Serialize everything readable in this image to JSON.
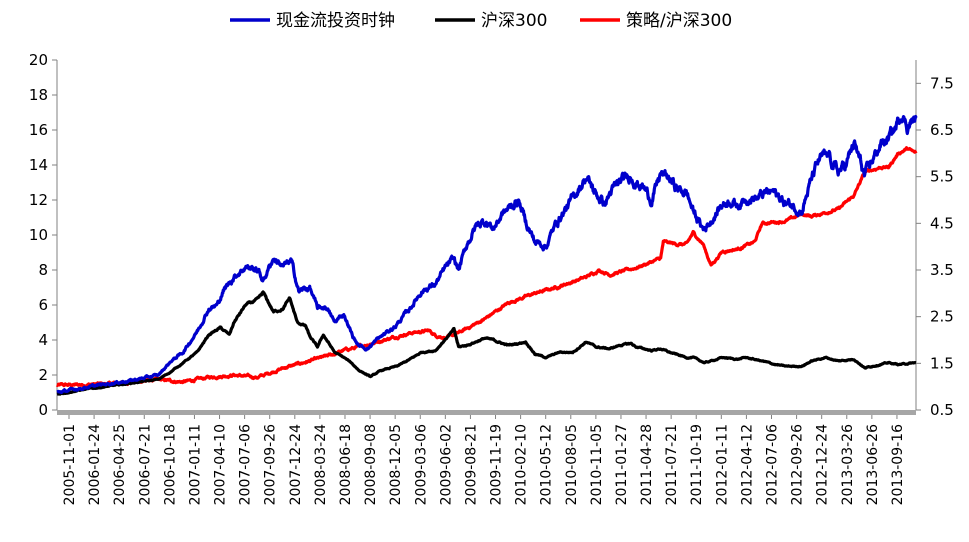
{
  "chart_data": {
    "type": "line",
    "title": "",
    "xlabel": "",
    "ylabel": "",
    "legend_position": "top-center",
    "grid": false,
    "x_start": "2005-11-01",
    "x_end": "2013-12-20",
    "ylim": [
      0,
      20
    ],
    "y_ticks": [
      0,
      2,
      4,
      6,
      8,
      10,
      12,
      14,
      16,
      18,
      20
    ],
    "y2lim": [
      0.5,
      8.0
    ],
    "y2_ticks": [
      "0.5",
      "1.5",
      "2.5",
      "3.5",
      "4.5",
      "5.5",
      "6.5",
      "7.5"
    ],
    "x_ticks": [
      "2005-11-01",
      "2006-01-24",
      "2006-04-25",
      "2006-07-21",
      "2006-10-18",
      "2007-01-11",
      "2007-04-10",
      "2007-07-06",
      "2007-09-26",
      "2007-12-24",
      "2008-03-24",
      "2008-06-18",
      "2008-09-08",
      "2008-12-05",
      "2009-03-06",
      "2009-06-02",
      "2009-08-21",
      "2009-11-19",
      "2010-02-10",
      "2010-05-12",
      "2010-08-05",
      "2010-11-05",
      "2011-01-27",
      "2011-04-28",
      "2011-07-21",
      "2011-10-19",
      "2012-01-11",
      "2012-04-12",
      "2012-07-06",
      "2012-09-26",
      "2012-12-24",
      "2013-03-26",
      "2013-06-26",
      "2013-09-16"
    ],
    "series": [
      {
        "name": "现金流投资时钟",
        "color": "#0000cc",
        "axis": "left",
        "points": [
          [
            "2005-11-01",
            1.0
          ],
          [
            "2006-01-24",
            1.25
          ],
          [
            "2006-04-25",
            1.5
          ],
          [
            "2006-07-21",
            1.7
          ],
          [
            "2006-10-18",
            2.0
          ],
          [
            "2006-12-01",
            2.8
          ],
          [
            "2007-01-11",
            3.3
          ],
          [
            "2007-03-01",
            4.5
          ],
          [
            "2007-04-10",
            5.8
          ],
          [
            "2007-05-10",
            6.0
          ],
          [
            "2007-05-30",
            6.8
          ],
          [
            "2007-07-06",
            7.6
          ],
          [
            "2007-08-15",
            8.2
          ],
          [
            "2007-09-26",
            8.0
          ],
          [
            "2007-10-15",
            7.4
          ],
          [
            "2007-11-20",
            8.7
          ],
          [
            "2007-12-24",
            8.2
          ],
          [
            "2008-01-20",
            8.5
          ],
          [
            "2008-02-15",
            6.8
          ],
          [
            "2008-03-24",
            7.0
          ],
          [
            "2008-04-20",
            5.8
          ],
          [
            "2008-05-20",
            5.9
          ],
          [
            "2008-06-18",
            5.0
          ],
          [
            "2008-07-20",
            5.5
          ],
          [
            "2008-08-20",
            4.2
          ],
          [
            "2008-09-08",
            3.7
          ],
          [
            "2008-10-10",
            3.5
          ],
          [
            "2008-11-10",
            4.0
          ],
          [
            "2008-12-05",
            4.3
          ],
          [
            "2009-01-15",
            4.8
          ],
          [
            "2009-03-06",
            5.8
          ],
          [
            "2009-04-15",
            6.8
          ],
          [
            "2009-06-02",
            7.2
          ],
          [
            "2009-07-10",
            8.2
          ],
          [
            "2009-08-05",
            8.6
          ],
          [
            "2009-08-21",
            8.0
          ],
          [
            "2009-09-20",
            9.5
          ],
          [
            "2009-10-20",
            10.5
          ],
          [
            "2009-11-19",
            10.8
          ],
          [
            "2009-12-20",
            10.4
          ],
          [
            "2010-01-20",
            11.2
          ],
          [
            "2010-02-10",
            11.5
          ],
          [
            "2010-03-15",
            12.0
          ],
          [
            "2010-04-10",
            10.8
          ],
          [
            "2010-05-12",
            9.6
          ],
          [
            "2010-06-20",
            9.4
          ],
          [
            "2010-07-20",
            10.5
          ],
          [
            "2010-08-05",
            11.0
          ],
          [
            "2010-09-10",
            11.8
          ],
          [
            "2010-10-15",
            12.8
          ],
          [
            "2010-11-05",
            13.3
          ],
          [
            "2010-12-10",
            12.3
          ],
          [
            "2011-01-10",
            11.8
          ],
          [
            "2011-01-27",
            12.4
          ],
          [
            "2011-03-01",
            13.0
          ],
          [
            "2011-04-10",
            13.4
          ],
          [
            "2011-04-28",
            13.0
          ],
          [
            "2011-05-20",
            12.8
          ],
          [
            "2011-06-20",
            12.0
          ],
          [
            "2011-07-21",
            13.5
          ],
          [
            "2011-08-20",
            13.2
          ],
          [
            "2011-09-20",
            12.6
          ],
          [
            "2011-10-19",
            12.4
          ],
          [
            "2011-11-10",
            11.4
          ],
          [
            "2011-12-15",
            10.3
          ],
          [
            "2012-01-11",
            10.8
          ],
          [
            "2012-02-20",
            11.8
          ],
          [
            "2012-03-20",
            12.0
          ],
          [
            "2012-04-12",
            11.7
          ],
          [
            "2012-05-20",
            12.2
          ],
          [
            "2012-06-20",
            12.1
          ],
          [
            "2012-07-06",
            12.3
          ],
          [
            "2012-08-10",
            12.5
          ],
          [
            "2012-09-26",
            11.8
          ],
          [
            "2012-10-20",
            11.7
          ],
          [
            "2012-11-20",
            11.4
          ],
          [
            "2012-12-24",
            13.2
          ],
          [
            "2013-01-20",
            14.3
          ],
          [
            "2013-02-20",
            14.5
          ],
          [
            "2013-03-26",
            13.6
          ],
          [
            "2013-04-20",
            14.0
          ],
          [
            "2013-05-20",
            15.2
          ],
          [
            "2013-06-10",
            14.2
          ],
          [
            "2013-06-26",
            13.3
          ],
          [
            "2013-07-20",
            14.2
          ],
          [
            "2013-08-20",
            15.2
          ],
          [
            "2013-09-16",
            15.5
          ],
          [
            "2013-10-10",
            16.1
          ],
          [
            "2013-11-01",
            17.0
          ],
          [
            "2013-11-20",
            16.2
          ],
          [
            "2013-12-05",
            16.5
          ],
          [
            "2013-12-20",
            16.7
          ]
        ]
      },
      {
        "name": "沪深300",
        "color": "#000000",
        "axis": "left",
        "points": [
          [
            "2005-11-01",
            0.9
          ],
          [
            "2006-01-24",
            1.15
          ],
          [
            "2006-04-25",
            1.35
          ],
          [
            "2006-07-21",
            1.55
          ],
          [
            "2006-10-18",
            1.75
          ],
          [
            "2006-12-01",
            2.2
          ],
          [
            "2007-01-11",
            2.7
          ],
          [
            "2007-03-01",
            3.3
          ],
          [
            "2007-04-10",
            4.3
          ],
          [
            "2007-05-20",
            4.7
          ],
          [
            "2007-06-20",
            4.3
          ],
          [
            "2007-07-06",
            5.0
          ],
          [
            "2007-08-15",
            6.0
          ],
          [
            "2007-09-26",
            6.3
          ],
          [
            "2007-10-15",
            6.7
          ],
          [
            "2007-11-20",
            5.6
          ],
          [
            "2007-12-24",
            5.8
          ],
          [
            "2008-01-15",
            6.4
          ],
          [
            "2008-02-10",
            5.0
          ],
          [
            "2008-03-10",
            4.8
          ],
          [
            "2008-03-24",
            4.2
          ],
          [
            "2008-04-20",
            3.6
          ],
          [
            "2008-05-10",
            4.3
          ],
          [
            "2008-06-18",
            3.3
          ],
          [
            "2008-07-20",
            3.0
          ],
          [
            "2008-08-15",
            2.7
          ],
          [
            "2008-09-08",
            2.3
          ],
          [
            "2008-10-20",
            1.9
          ],
          [
            "2008-11-20",
            2.2
          ],
          [
            "2008-12-05",
            2.3
          ],
          [
            "2009-01-20",
            2.5
          ],
          [
            "2009-03-06",
            2.9
          ],
          [
            "2009-04-15",
            3.3
          ],
          [
            "2009-06-02",
            3.4
          ],
          [
            "2009-07-20",
            4.3
          ],
          [
            "2009-08-05",
            4.6
          ],
          [
            "2009-08-21",
            3.6
          ],
          [
            "2009-09-20",
            3.7
          ],
          [
            "2009-11-19",
            4.1
          ],
          [
            "2009-12-20",
            4.0
          ],
          [
            "2010-01-20",
            3.8
          ],
          [
            "2010-02-10",
            3.7
          ],
          [
            "2010-03-15",
            3.8
          ],
          [
            "2010-04-10",
            3.9
          ],
          [
            "2010-05-12",
            3.2
          ],
          [
            "2010-06-20",
            3.0
          ],
          [
            "2010-07-20",
            3.2
          ],
          [
            "2010-08-05",
            3.3
          ],
          [
            "2010-09-20",
            3.3
          ],
          [
            "2010-11-05",
            3.9
          ],
          [
            "2010-12-10",
            3.6
          ],
          [
            "2011-01-27",
            3.5
          ],
          [
            "2011-03-01",
            3.7
          ],
          [
            "2011-04-10",
            3.8
          ],
          [
            "2011-04-28",
            3.6
          ],
          [
            "2011-06-20",
            3.4
          ],
          [
            "2011-07-21",
            3.5
          ],
          [
            "2011-08-20",
            3.3
          ],
          [
            "2011-10-19",
            3.0
          ],
          [
            "2011-11-10",
            3.0
          ],
          [
            "2011-12-20",
            2.7
          ],
          [
            "2012-01-11",
            2.8
          ],
          [
            "2012-02-20",
            3.0
          ],
          [
            "2012-04-12",
            2.9
          ],
          [
            "2012-05-10",
            3.0
          ],
          [
            "2012-07-06",
            2.8
          ],
          [
            "2012-08-20",
            2.6
          ],
          [
            "2012-09-26",
            2.5
          ],
          [
            "2012-11-20",
            2.5
          ],
          [
            "2012-12-24",
            2.8
          ],
          [
            "2013-02-10",
            3.0
          ],
          [
            "2013-03-26",
            2.8
          ],
          [
            "2013-05-20",
            2.9
          ],
          [
            "2013-06-26",
            2.4
          ],
          [
            "2013-07-20",
            2.5
          ],
          [
            "2013-09-16",
            2.7
          ],
          [
            "2013-10-20",
            2.6
          ],
          [
            "2013-12-20",
            2.7
          ]
        ]
      },
      {
        "name": "策略/沪深300",
        "color": "#ff0000",
        "axis": "right",
        "points": [
          [
            "2005-11-01",
            1.03
          ],
          [
            "2006-01-24",
            1.04
          ],
          [
            "2006-04-25",
            1.06
          ],
          [
            "2006-07-21",
            1.1
          ],
          [
            "2006-10-18",
            1.15
          ],
          [
            "2007-01-11",
            1.1
          ],
          [
            "2007-04-10",
            1.2
          ],
          [
            "2007-07-06",
            1.25
          ],
          [
            "2007-08-20",
            1.22
          ],
          [
            "2007-09-26",
            1.2
          ],
          [
            "2007-12-24",
            1.4
          ],
          [
            "2008-03-24",
            1.55
          ],
          [
            "2008-06-18",
            1.7
          ],
          [
            "2008-07-20",
            1.78
          ],
          [
            "2008-09-08",
            1.85
          ],
          [
            "2008-12-05",
            2.0
          ],
          [
            "2009-03-06",
            2.15
          ],
          [
            "2009-05-10",
            2.2
          ],
          [
            "2009-06-02",
            2.1
          ],
          [
            "2009-07-10",
            2.05
          ],
          [
            "2009-08-21",
            2.15
          ],
          [
            "2009-11-19",
            2.45
          ],
          [
            "2010-02-10",
            2.8
          ],
          [
            "2010-05-12",
            3.0
          ],
          [
            "2010-08-05",
            3.15
          ],
          [
            "2010-11-05",
            3.35
          ],
          [
            "2010-12-20",
            3.5
          ],
          [
            "2011-01-27",
            3.4
          ],
          [
            "2011-04-28",
            3.55
          ],
          [
            "2011-07-21",
            3.75
          ],
          [
            "2011-07-30",
            4.1
          ],
          [
            "2011-09-20",
            4.05
          ],
          [
            "2011-10-19",
            4.05
          ],
          [
            "2011-11-10",
            4.3
          ],
          [
            "2011-12-15",
            4.05
          ],
          [
            "2012-01-11",
            3.6
          ],
          [
            "2012-02-20",
            3.9
          ],
          [
            "2012-04-12",
            3.95
          ],
          [
            "2012-06-10",
            4.1
          ],
          [
            "2012-07-06",
            4.5
          ],
          [
            "2012-09-26",
            4.55
          ],
          [
            "2012-11-20",
            4.7
          ],
          [
            "2012-12-24",
            4.65
          ],
          [
            "2013-02-20",
            4.75
          ],
          [
            "2013-03-26",
            4.8
          ],
          [
            "2013-05-20",
            5.1
          ],
          [
            "2013-06-26",
            5.6
          ],
          [
            "2013-08-20",
            5.7
          ],
          [
            "2013-09-16",
            5.7
          ],
          [
            "2013-10-20",
            6.0
          ],
          [
            "2013-11-20",
            6.1
          ],
          [
            "2013-12-20",
            6.0
          ]
        ]
      }
    ]
  }
}
